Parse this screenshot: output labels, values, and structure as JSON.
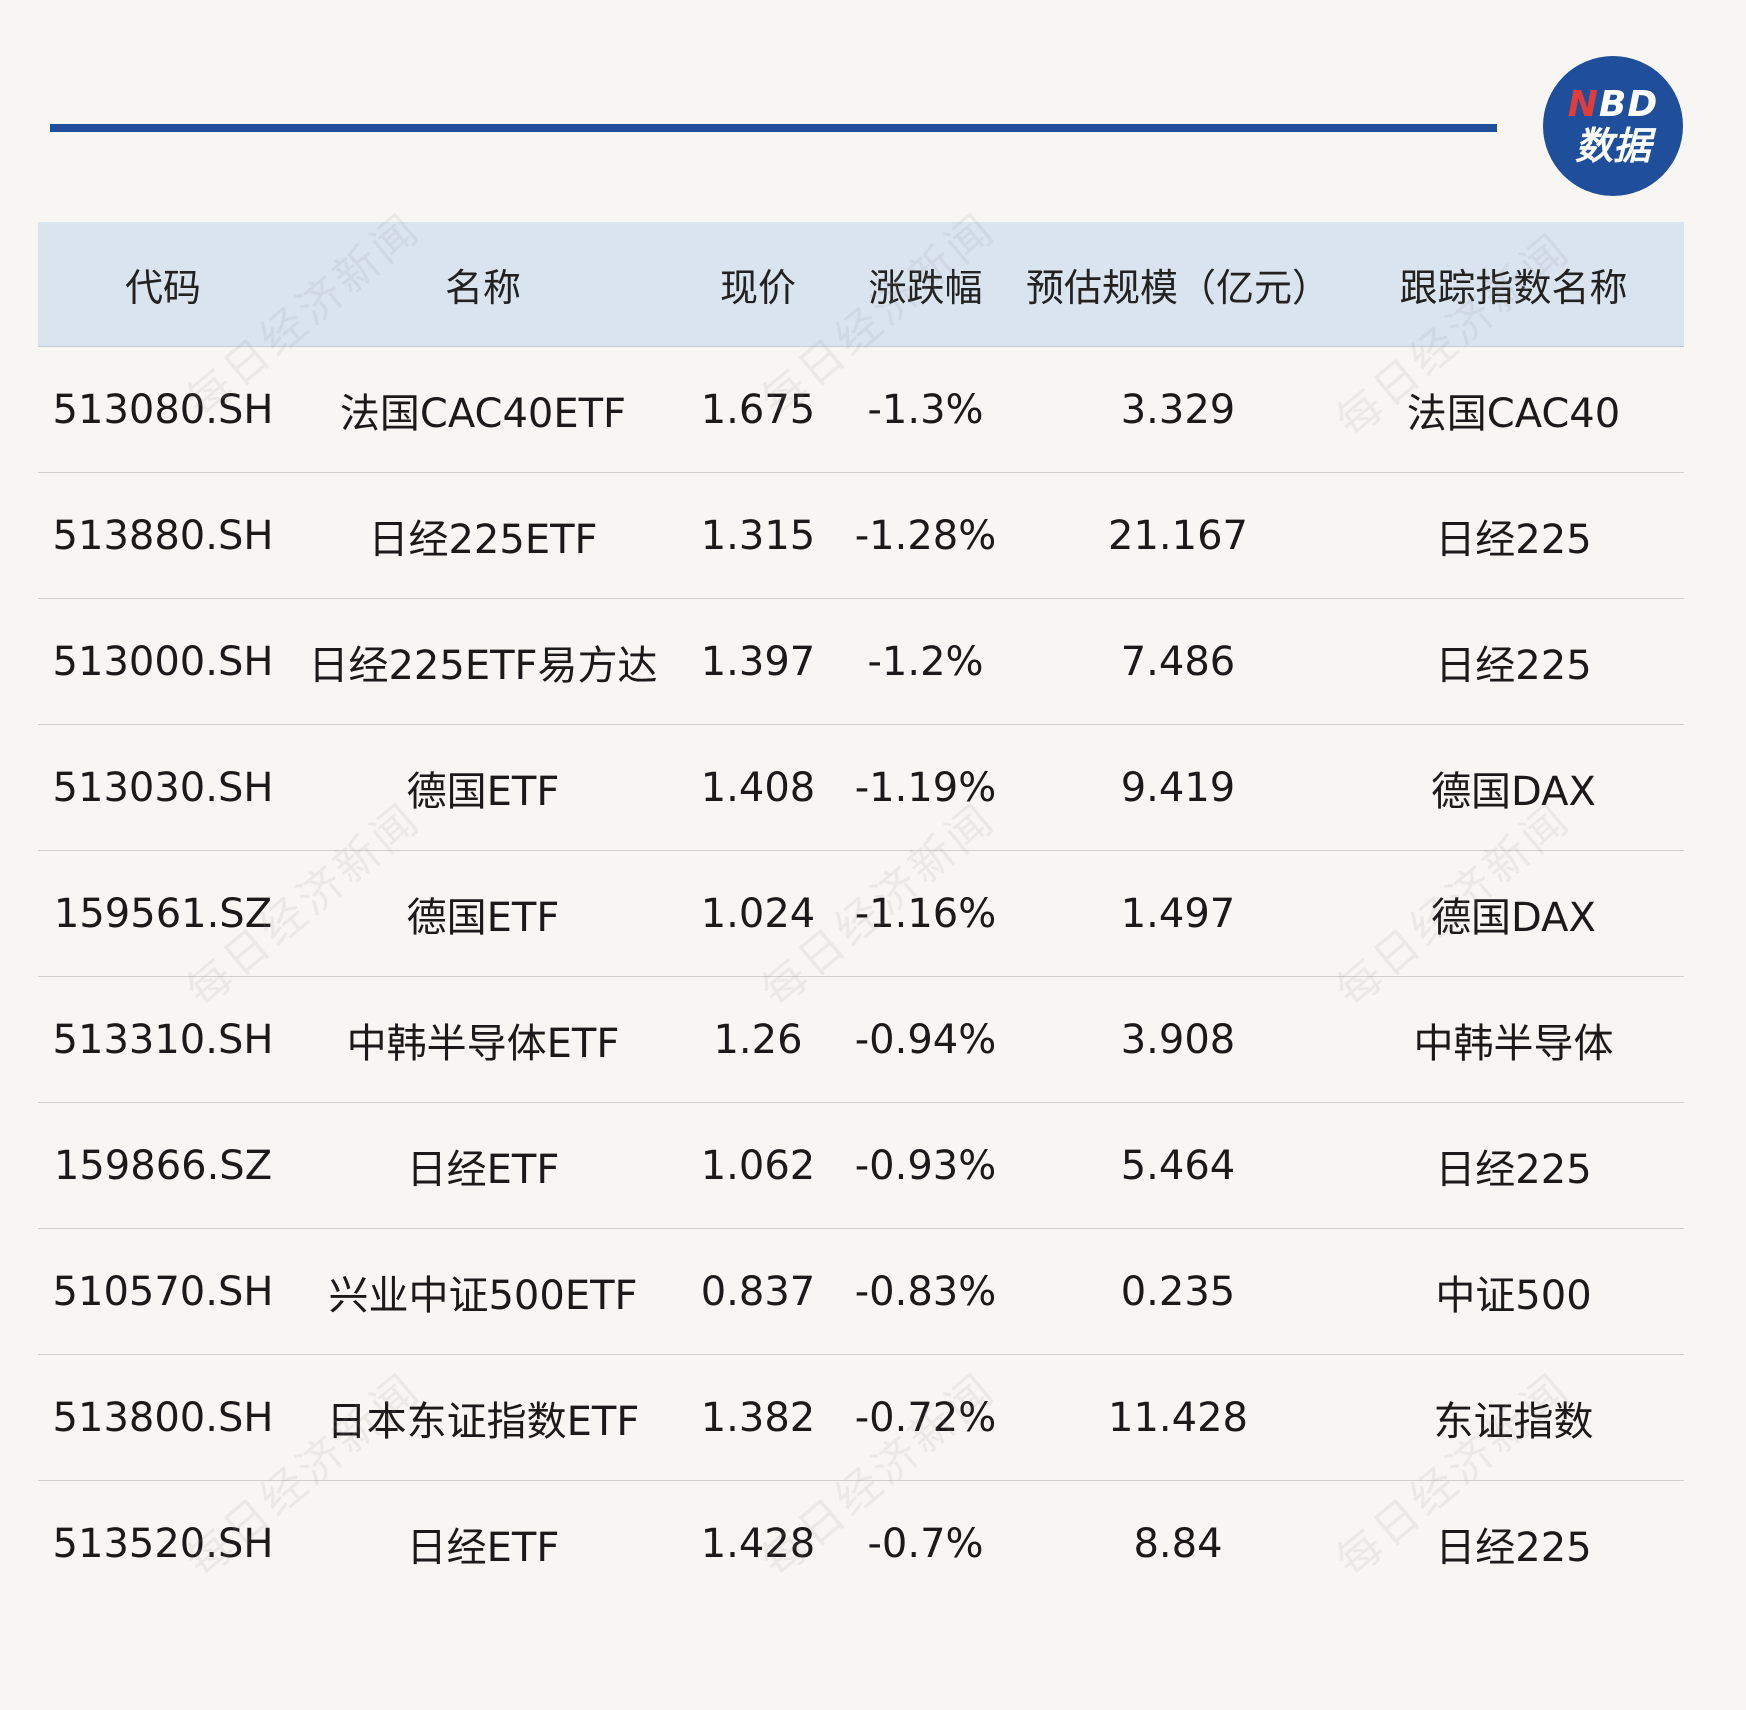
{
  "logo": {
    "line1_n": "N",
    "line1_rest": "BD",
    "line2": "数据"
  },
  "watermark": "每日经济新闻",
  "table": {
    "headers": [
      "代码",
      "名称",
      "现价",
      "涨跌幅",
      "预估规模（亿元）",
      "跟踪指数名称"
    ],
    "rows": [
      [
        "513080.SH",
        "法国CAC40ETF",
        "1.675",
        "-1.3%",
        "3.329",
        "法国CAC40"
      ],
      [
        "513880.SH",
        "日经225ETF",
        "1.315",
        "-1.28%",
        "21.167",
        "日经225"
      ],
      [
        "513000.SH",
        "日经225ETF易方达",
        "1.397",
        "-1.2%",
        "7.486",
        "日经225"
      ],
      [
        "513030.SH",
        "德国ETF",
        "1.408",
        "-1.19%",
        "9.419",
        "德国DAX"
      ],
      [
        "159561.SZ",
        "德国ETF",
        "1.024",
        "-1.16%",
        "1.497",
        "德国DAX"
      ],
      [
        "513310.SH",
        "中韩半导体ETF",
        "1.26",
        "-0.94%",
        "3.908",
        "中韩半导体"
      ],
      [
        "159866.SZ",
        "日经ETF",
        "1.062",
        "-0.93%",
        "5.464",
        "日经225"
      ],
      [
        "510570.SH",
        "兴业中证500ETF",
        "0.837",
        "-0.83%",
        "0.235",
        "中证500"
      ],
      [
        "513800.SH",
        "日本东证指数ETF",
        "1.382",
        "-0.72%",
        "11.428",
        "东证指数"
      ],
      [
        "513520.SH",
        "日经ETF",
        "1.428",
        "-0.7%",
        "8.84",
        "日经225"
      ]
    ]
  }
}
